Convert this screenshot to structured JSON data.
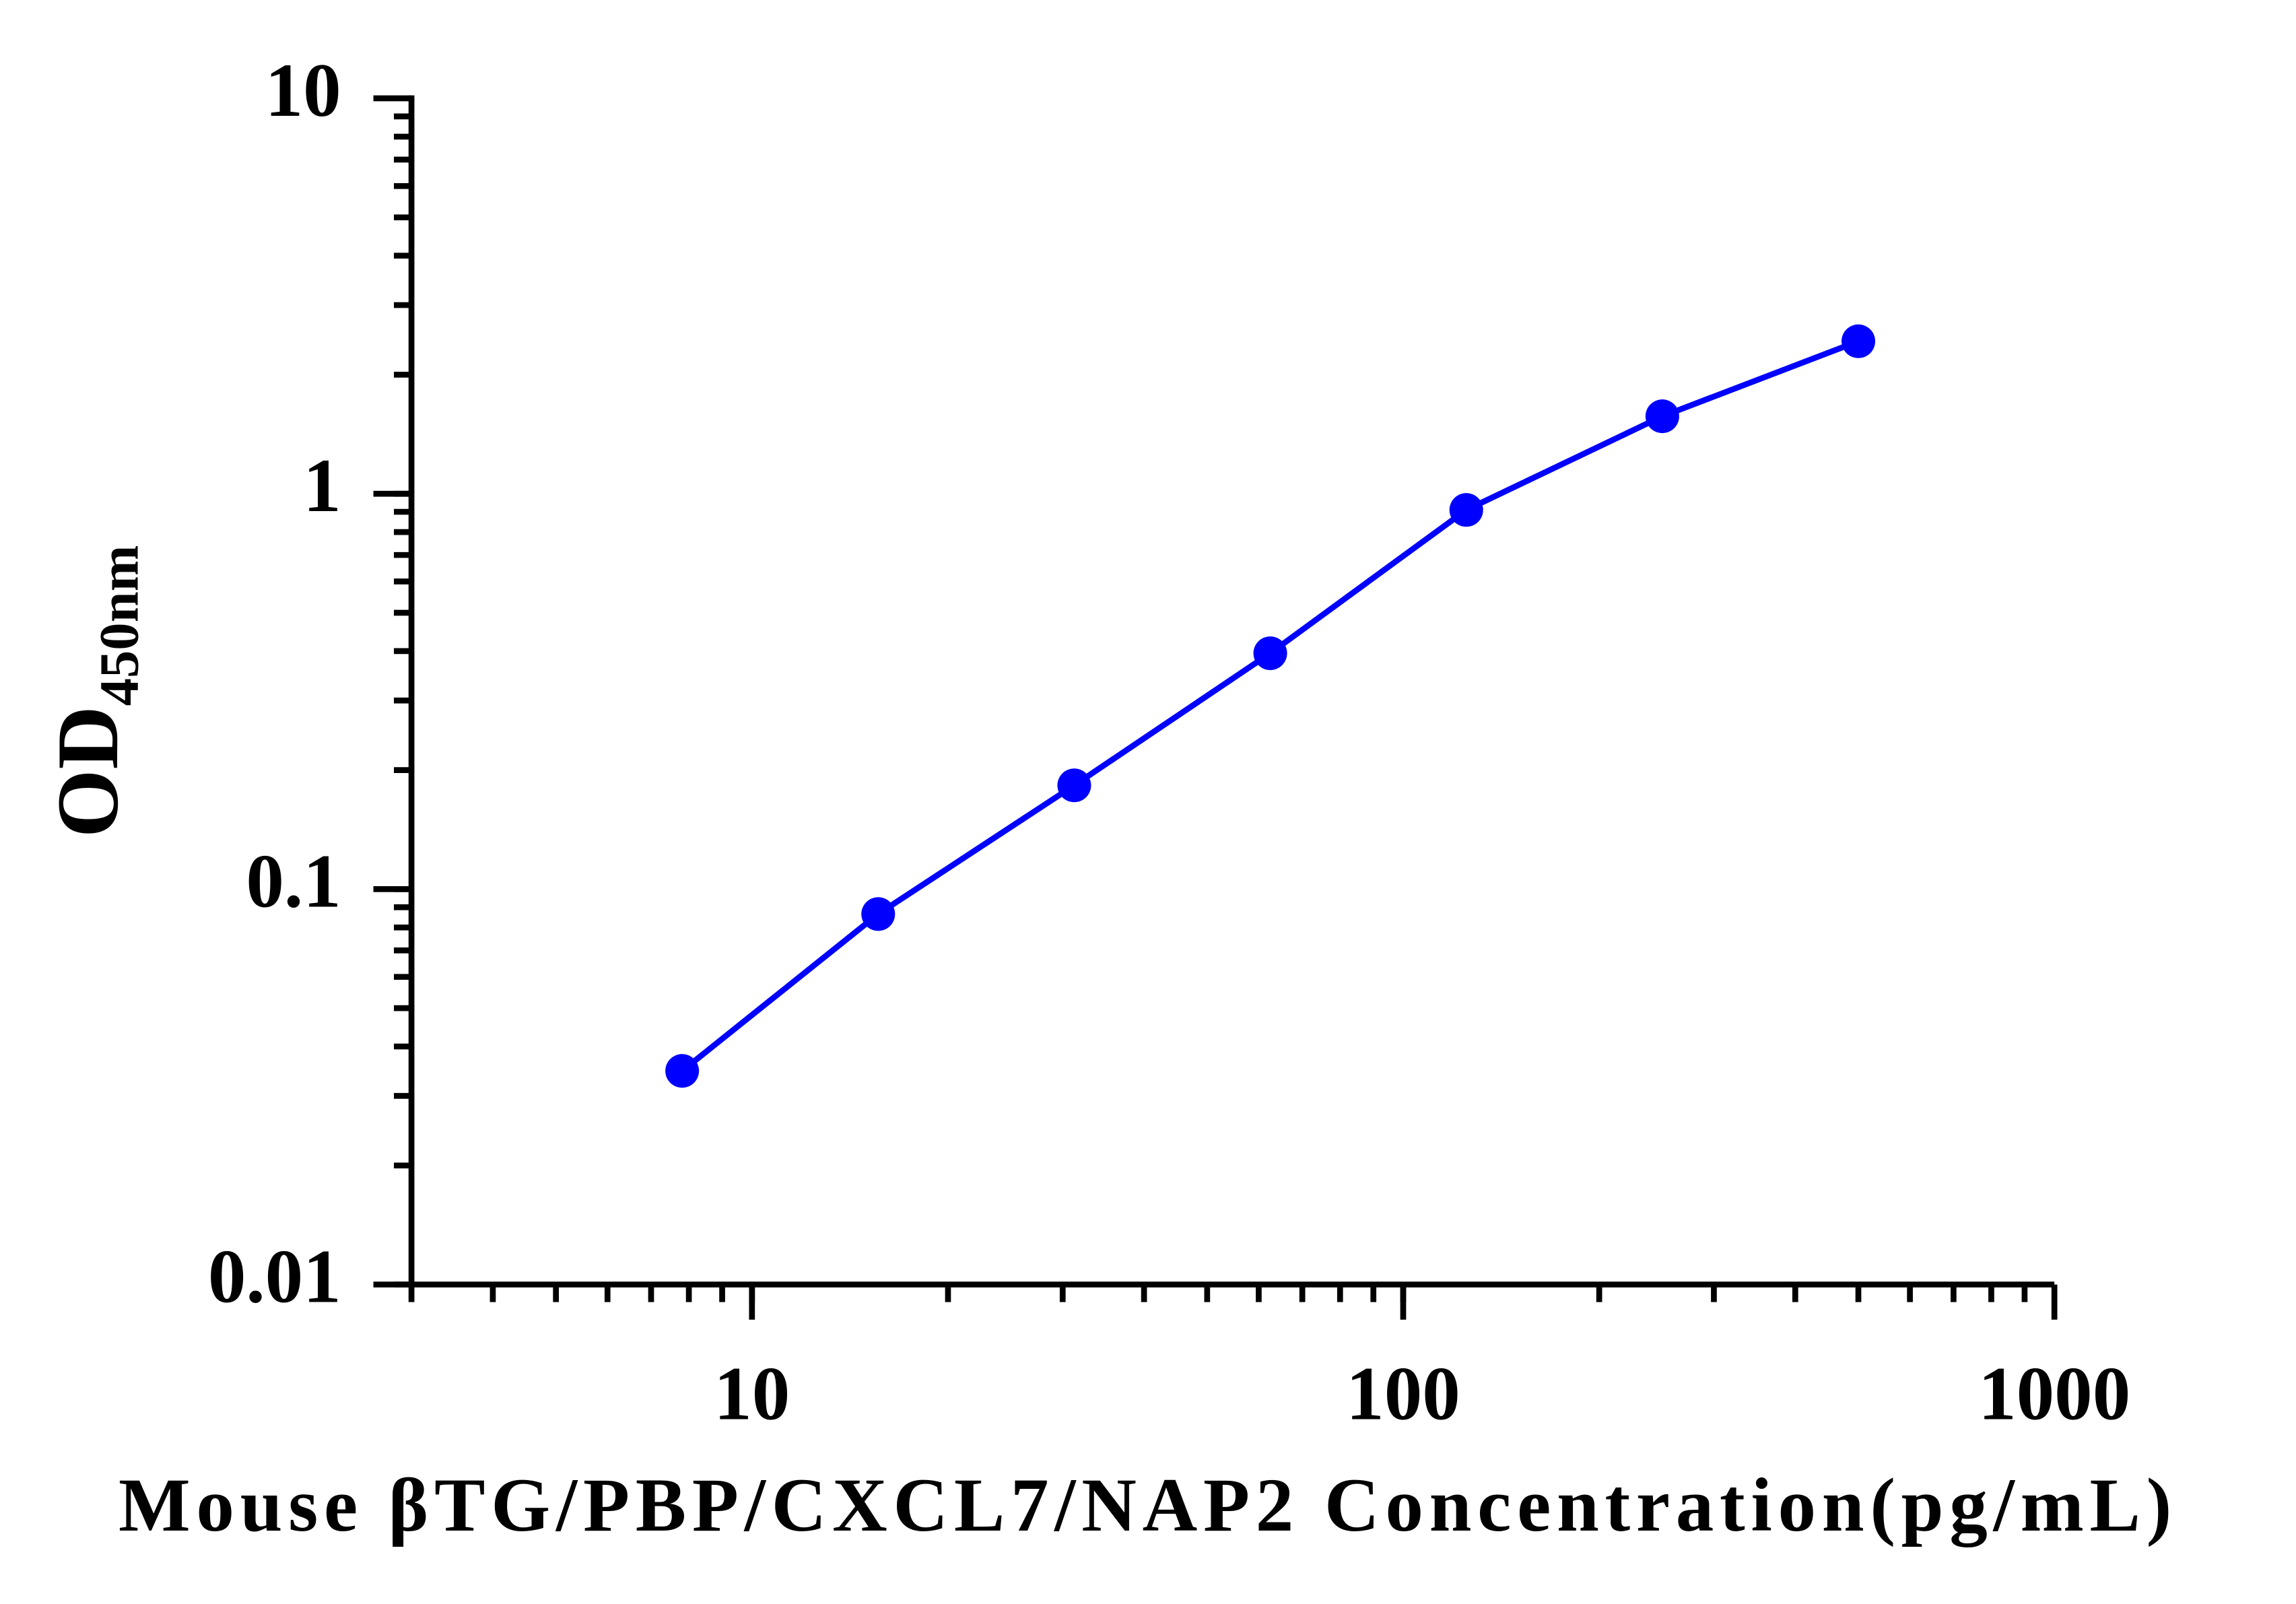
{
  "chart_data": {
    "type": "line",
    "x_label": "Mouse βTG/PBP/CXCL7/NAP2 Concentration(pg/mL)",
    "y_label": "OD",
    "y_label_sub": "450nm",
    "x": [
      7.8125,
      15.625,
      31.25,
      62.5,
      125,
      250,
      500
    ],
    "series": [
      {
        "color": "#0000ff",
        "values": [
          0.0347,
          0.0865,
          0.183,
          0.395,
          0.91,
          1.57,
          2.43
        ]
      }
    ],
    "xscale": "log",
    "yscale": "log",
    "xlim": [
      3,
      1000
    ],
    "xticks": [
      10,
      100,
      1000
    ],
    "ylim": [
      0.01,
      10
    ],
    "yticks": [
      0.01,
      0.1,
      1,
      10
    ]
  }
}
